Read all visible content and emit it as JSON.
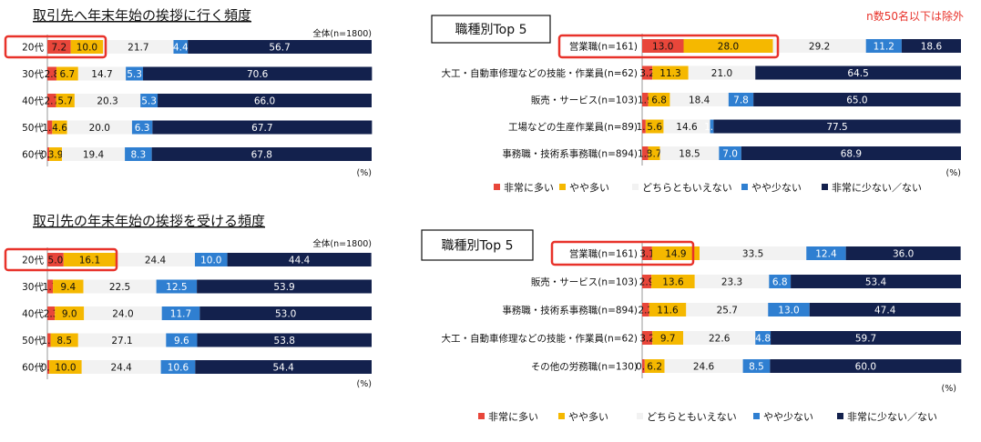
{
  "colors": {
    "very_many": "#e8463a",
    "somewhat_many": "#f5b800",
    "neither": "#f2f2f2",
    "somewhat_few": "#2f7fd1",
    "very_few": "#13214d",
    "highlight": "#e8322a"
  },
  "legend": [
    "非常に多い",
    "やや多い",
    "どちらともいえない",
    "やや少ない",
    "非常に少ない／ない"
  ],
  "note": "n数50名以下は除外",
  "chart_data": [
    {
      "type": "bar",
      "title": "取引先へ年末年始の挨拶に行く頻度",
      "overall_label": "全体(n=1800)",
      "unit": "(%)",
      "categories": [
        "20代",
        "30代",
        "40代",
        "50代",
        "60代"
      ],
      "series": [
        {
          "name": "非常に多い",
          "values": [
            7.2,
            2.8,
            2.7,
            1.5,
            0.6
          ]
        },
        {
          "name": "やや多い",
          "values": [
            10.0,
            6.7,
            5.7,
            4.6,
            3.9
          ]
        },
        {
          "name": "どちらともいえない",
          "values": [
            21.7,
            14.7,
            20.3,
            20.0,
            19.4
          ]
        },
        {
          "name": "やや少ない",
          "values": [
            4.4,
            5.3,
            5.3,
            6.3,
            8.3
          ]
        },
        {
          "name": "非常に少ない／ない",
          "values": [
            56.7,
            70.6,
            66.0,
            67.7,
            67.8
          ]
        }
      ],
      "highlight": "20代"
    },
    {
      "type": "bar",
      "title": "職種別Top 5",
      "unit": "(%)",
      "categories": [
        "営業職(n=161)",
        "大工・自動車修理などの技能・作業員(n=62)",
        "販売・サービス(n=103)",
        "工場などの生産作業員(n=89)",
        "事務職・技術系事務職(n=894)"
      ],
      "series": [
        {
          "name": "非常に多い",
          "values": [
            13.0,
            3.2,
            1.9,
            1.1,
            1.9
          ]
        },
        {
          "name": "やや多い",
          "values": [
            28.0,
            11.3,
            6.8,
            5.6,
            3.7
          ]
        },
        {
          "name": "どちらともいえない",
          "values": [
            29.2,
            21.0,
            18.4,
            14.6,
            18.5
          ]
        },
        {
          "name": "やや少ない",
          "values": [
            11.2,
            0.0,
            7.8,
            1.1,
            7.0
          ]
        },
        {
          "name": "非常に少ない／ない",
          "values": [
            18.6,
            64.5,
            65.0,
            77.5,
            68.9
          ]
        }
      ],
      "highlight": "営業職(n=161)"
    },
    {
      "type": "bar",
      "title": "取引先の年末年始の挨拶を受ける頻度",
      "overall_label": "全体(n=1800)",
      "unit": "(%)",
      "categories": [
        "20代",
        "30代",
        "40代",
        "50代",
        "60代"
      ],
      "series": [
        {
          "name": "非常に多い",
          "values": [
            5.0,
            1.7,
            2.3,
            1.0,
            0.6
          ]
        },
        {
          "name": "やや多い",
          "values": [
            16.1,
            9.4,
            9.0,
            8.5,
            10.0
          ]
        },
        {
          "name": "どちらともいえない",
          "values": [
            24.4,
            22.5,
            24.0,
            27.1,
            24.4
          ]
        },
        {
          "name": "やや少ない",
          "values": [
            10.0,
            12.5,
            11.7,
            9.6,
            10.6
          ]
        },
        {
          "name": "非常に少ない／ない",
          "values": [
            44.4,
            53.9,
            53.0,
            53.8,
            54.4
          ]
        }
      ],
      "highlight": "20代"
    },
    {
      "type": "bar",
      "title": "職種別Top 5",
      "unit": "(%)",
      "categories": [
        "営業職(n=161)",
        "販売・サービス(n=103)",
        "事務職・技術系事務職(n=894)",
        "大工・自動車修理などの技能・作業員(n=62)",
        "その他の労務職(n=130)"
      ],
      "series": [
        {
          "name": "非常に多い",
          "values": [
            3.1,
            2.9,
            2.2,
            3.2,
            0.8
          ]
        },
        {
          "name": "やや多い",
          "values": [
            14.9,
            13.6,
            11.6,
            9.7,
            6.2
          ]
        },
        {
          "name": "どちらともいえない",
          "values": [
            33.5,
            23.3,
            25.7,
            22.6,
            24.6
          ]
        },
        {
          "name": "やや少ない",
          "values": [
            12.4,
            6.8,
            13.0,
            4.8,
            8.5
          ]
        },
        {
          "name": "非常に少ない／ない",
          "values": [
            36.0,
            53.4,
            47.4,
            59.7,
            60.0
          ]
        }
      ],
      "highlight": "営業職(n=161)"
    }
  ]
}
